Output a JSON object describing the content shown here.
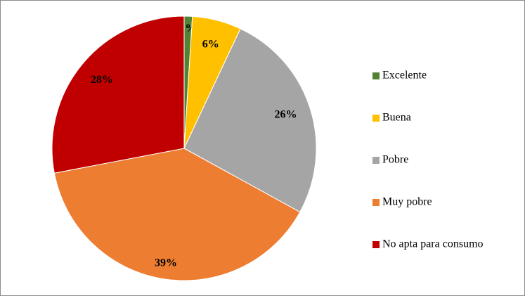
{
  "chart_data": {
    "type": "pie",
    "categories": [
      "Excelente",
      "Buena",
      "Pobre",
      "Muy pobre",
      "No apta para consumo"
    ],
    "values": [
      1,
      6,
      26,
      39,
      28
    ],
    "value_labels": [
      "1%",
      "6%",
      "26%",
      "39%",
      "28%"
    ],
    "colors": [
      "#548235",
      "#ffc000",
      "#a5a5a5",
      "#ed7d31",
      "#c00000"
    ],
    "legend": "right"
  }
}
